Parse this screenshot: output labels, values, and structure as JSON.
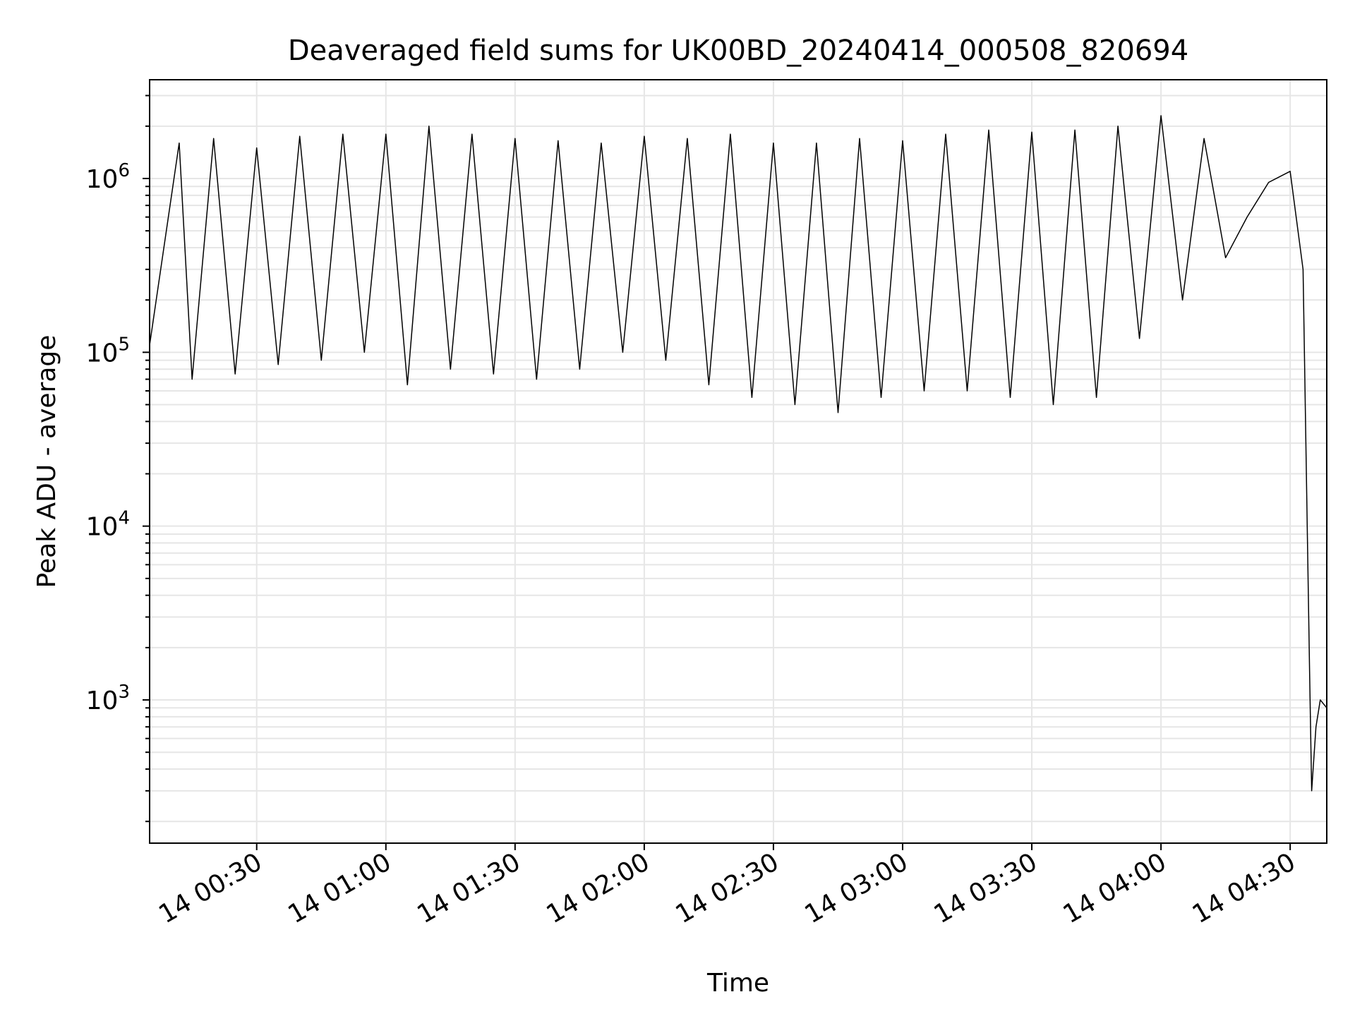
{
  "chart_data": {
    "type": "line",
    "title": "Deaveraged field sums for UK00BD_20240414_000508_820694",
    "xlabel": "Time",
    "ylabel": "Peak ADU - average",
    "yscale": "log",
    "ylim": [
      150,
      3700000
    ],
    "xlim": [
      "2024-04-14 00:05:08",
      "2024-04-14 04:38:30"
    ],
    "x_ticks": [
      "14 00:30",
      "14 01:00",
      "14 01:30",
      "14 02:00",
      "14 02:30",
      "14 03:00",
      "14 03:30",
      "14 04:00",
      "14 04:30"
    ],
    "y_ticks": [
      {
        "base": "10",
        "exp": "3",
        "value": 1000
      },
      {
        "base": "10",
        "exp": "4",
        "value": 10000
      },
      {
        "base": "10",
        "exp": "5",
        "value": 100000
      },
      {
        "base": "10",
        "exp": "6",
        "value": 1000000
      }
    ],
    "grid": true,
    "grid_color": "#e6e6e6",
    "line_color": "#000000",
    "series": [
      {
        "values": [
          [
            "2024-04-14 00:05:08",
            110000
          ],
          [
            "2024-04-14 00:12:00",
            1600000
          ],
          [
            "2024-04-14 00:15:00",
            70000
          ],
          [
            "2024-04-14 00:20:00",
            1700000
          ],
          [
            "2024-04-14 00:25:00",
            75000
          ],
          [
            "2024-04-14 00:30:00",
            1500000
          ],
          [
            "2024-04-14 00:35:00",
            85000
          ],
          [
            "2024-04-14 00:40:00",
            1750000
          ],
          [
            "2024-04-14 00:45:00",
            90000
          ],
          [
            "2024-04-14 00:50:00",
            1800000
          ],
          [
            "2024-04-14 00:55:00",
            100000
          ],
          [
            "2024-04-14 01:00:00",
            1800000
          ],
          [
            "2024-04-14 01:05:00",
            65000
          ],
          [
            "2024-04-14 01:10:00",
            2000000
          ],
          [
            "2024-04-14 01:15:00",
            80000
          ],
          [
            "2024-04-14 01:20:00",
            1800000
          ],
          [
            "2024-04-14 01:25:00",
            75000
          ],
          [
            "2024-04-14 01:30:00",
            1700000
          ],
          [
            "2024-04-14 01:35:00",
            70000
          ],
          [
            "2024-04-14 01:40:00",
            1650000
          ],
          [
            "2024-04-14 01:45:00",
            80000
          ],
          [
            "2024-04-14 01:50:00",
            1600000
          ],
          [
            "2024-04-14 01:55:00",
            100000
          ],
          [
            "2024-04-14 02:00:00",
            1750000
          ],
          [
            "2024-04-14 02:05:00",
            90000
          ],
          [
            "2024-04-14 02:10:00",
            1700000
          ],
          [
            "2024-04-14 02:15:00",
            65000
          ],
          [
            "2024-04-14 02:20:00",
            1800000
          ],
          [
            "2024-04-14 02:25:00",
            55000
          ],
          [
            "2024-04-14 02:30:00",
            1600000
          ],
          [
            "2024-04-14 02:35:00",
            50000
          ],
          [
            "2024-04-14 02:40:00",
            1600000
          ],
          [
            "2024-04-14 02:45:00",
            45000
          ],
          [
            "2024-04-14 02:50:00",
            1700000
          ],
          [
            "2024-04-14 02:55:00",
            55000
          ],
          [
            "2024-04-14 03:00:00",
            1650000
          ],
          [
            "2024-04-14 03:05:00",
            60000
          ],
          [
            "2024-04-14 03:10:00",
            1800000
          ],
          [
            "2024-04-14 03:15:00",
            60000
          ],
          [
            "2024-04-14 03:20:00",
            1900000
          ],
          [
            "2024-04-14 03:25:00",
            55000
          ],
          [
            "2024-04-14 03:30:00",
            1850000
          ],
          [
            "2024-04-14 03:35:00",
            50000
          ],
          [
            "2024-04-14 03:40:00",
            1900000
          ],
          [
            "2024-04-14 03:45:00",
            55000
          ],
          [
            "2024-04-14 03:50:00",
            2000000
          ],
          [
            "2024-04-14 03:55:00",
            120000
          ],
          [
            "2024-04-14 04:00:00",
            2300000
          ],
          [
            "2024-04-14 04:05:00",
            200000
          ],
          [
            "2024-04-14 04:10:00",
            1700000
          ],
          [
            "2024-04-14 04:15:00",
            350000
          ],
          [
            "2024-04-14 04:20:00",
            600000
          ],
          [
            "2024-04-14 04:25:00",
            950000
          ],
          [
            "2024-04-14 04:30:00",
            1100000
          ],
          [
            "2024-04-14 04:33:00",
            300000
          ],
          [
            "2024-04-14 04:34:30",
            1500
          ],
          [
            "2024-04-14 04:35:00",
            300
          ],
          [
            "2024-04-14 04:36:00",
            700
          ],
          [
            "2024-04-14 04:37:00",
            1000
          ],
          [
            "2024-04-14 04:38:30",
            900
          ]
        ]
      }
    ]
  }
}
